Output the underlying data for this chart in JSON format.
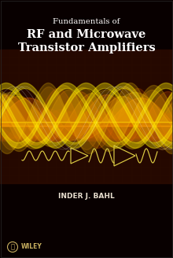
{
  "title_line1": "Fundamentals of",
  "title_line2": "RF and Microwave",
  "title_line3": "Transistor Amplifiers",
  "author": "INDER J. BAHL",
  "publisher": "WILEY",
  "bg_color": "#080000",
  "mid_bg_color": "#250800",
  "title_color": "#ffffff",
  "author_color": "#e8e0d0",
  "wiley_color": "#c8b060",
  "grid_color": "#3a1500",
  "wave_orange": "#ff6600",
  "wave_amber": "#ffaa00",
  "wave_yellow": "#ffcc00",
  "wave_bright": "#ffee00",
  "signal_color": "#ddcc44",
  "figsize": [
    2.2,
    3.28
  ],
  "dpi": 100
}
